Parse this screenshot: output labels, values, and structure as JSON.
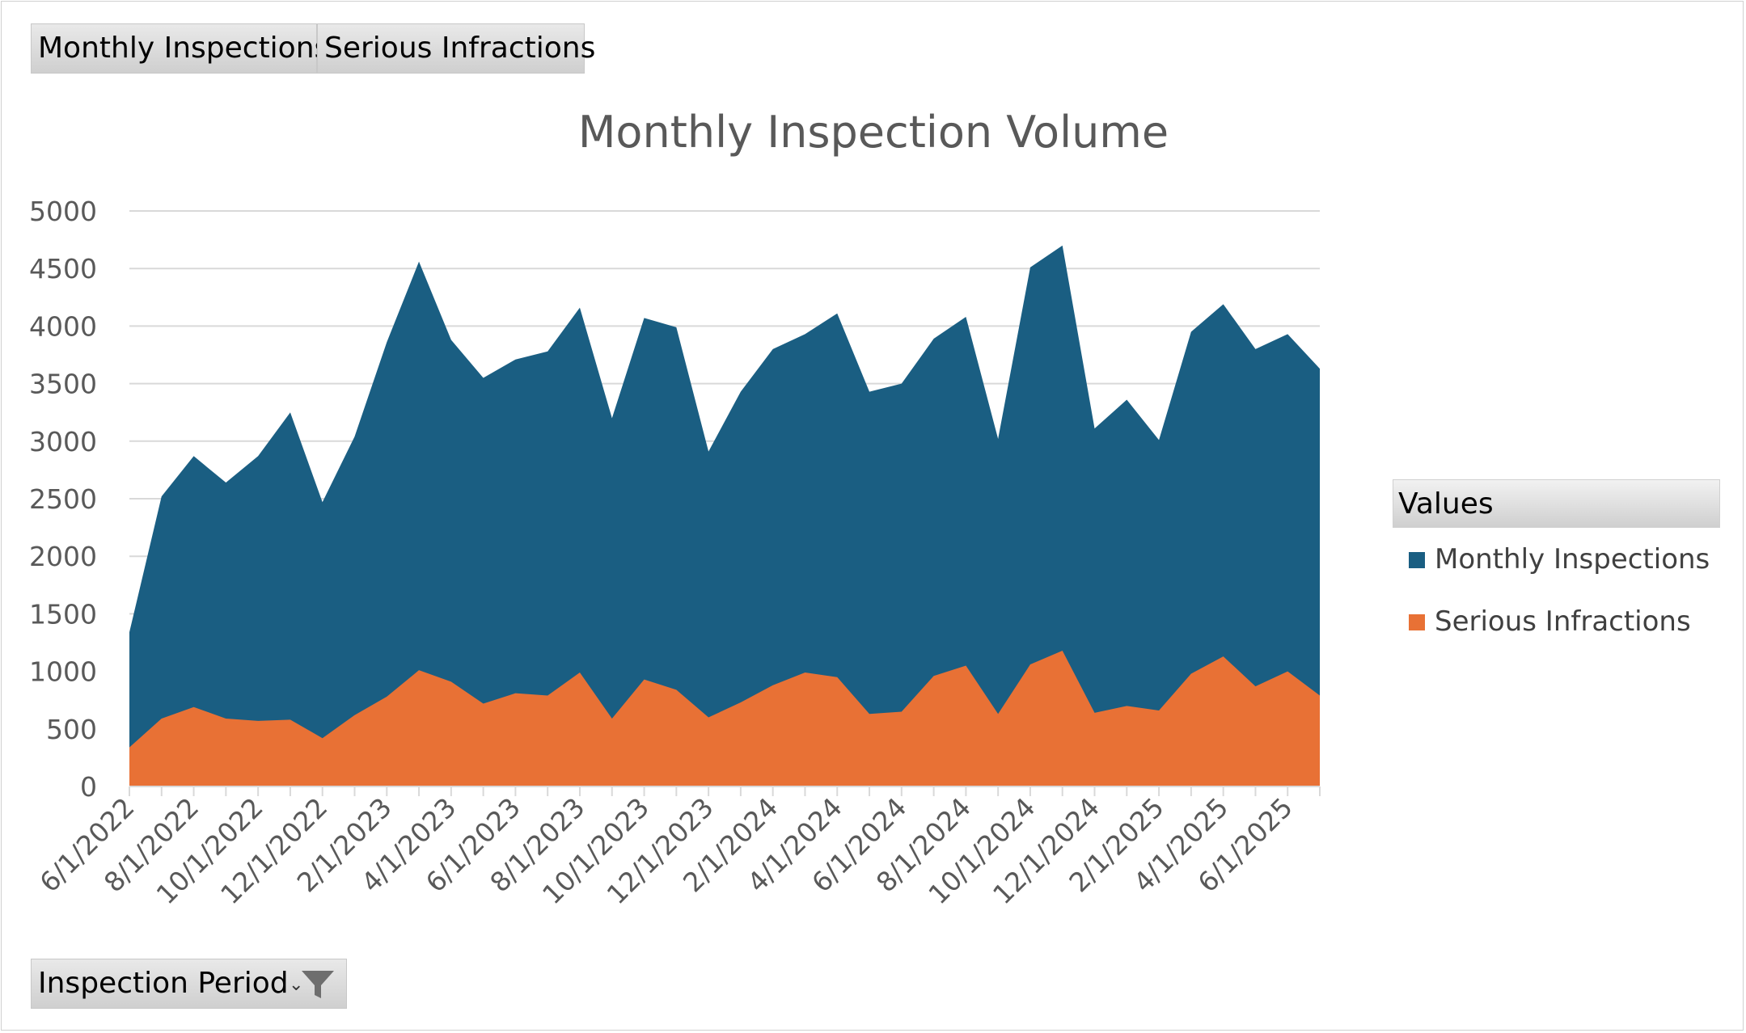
{
  "field_buttons": {
    "series_1": "Monthly Inspections",
    "series_2": "Serious Infractions",
    "filter": "Inspection Period"
  },
  "legend": {
    "title": "Values",
    "items": [
      "Monthly Inspections",
      "Serious Infractions"
    ]
  },
  "colors": {
    "monthly_inspections": "#1a5e82",
    "serious_infractions": "#e87135",
    "gridline": "#d9d9d9",
    "axis_text": "#595959"
  },
  "icons": {
    "filter": "funnel-icon",
    "dropdown": "dropdown-caret-icon"
  },
  "chart_data": {
    "type": "area",
    "title": "Monthly Inspection Volume",
    "xlabel": "",
    "ylabel": "",
    "ylim": [
      0,
      5000
    ],
    "yticks": [
      0,
      500,
      1000,
      1500,
      2000,
      2500,
      3000,
      3500,
      4000,
      4500,
      5000
    ],
    "grid": true,
    "legend_position": "right",
    "overlapping": true,
    "x": [
      "6/1/2022",
      "7/1/2022",
      "8/1/2022",
      "9/1/2022",
      "10/1/2022",
      "11/1/2022",
      "12/1/2022",
      "1/1/2023",
      "2/1/2023",
      "3/1/2023",
      "4/1/2023",
      "5/1/2023",
      "6/1/2023",
      "7/1/2023",
      "8/1/2023",
      "9/1/2023",
      "10/1/2023",
      "11/1/2023",
      "12/1/2023",
      "1/1/2024",
      "2/1/2024",
      "3/1/2024",
      "4/1/2024",
      "5/1/2024",
      "6/1/2024",
      "7/1/2024",
      "8/1/2024",
      "9/1/2024",
      "10/1/2024",
      "11/1/2024",
      "12/1/2024",
      "1/1/2025",
      "2/1/2025",
      "3/1/2025",
      "4/1/2025",
      "5/1/2025",
      "6/1/2025",
      "7/1/2025"
    ],
    "x_tick_labels": [
      "6/1/2022",
      "8/1/2022",
      "10/1/2022",
      "12/1/2022",
      "2/1/2023",
      "4/1/2023",
      "6/1/2023",
      "8/1/2023",
      "10/1/2023",
      "12/1/2023",
      "2/1/2024",
      "4/1/2024",
      "6/1/2024",
      "8/1/2024",
      "10/1/2024",
      "12/1/2024",
      "2/1/2025",
      "4/1/2025",
      "6/1/2025"
    ],
    "series": [
      {
        "name": "Monthly Inspections",
        "values": [
          1340,
          2520,
          2870,
          2640,
          2870,
          3250,
          2470,
          3040,
          3860,
          4560,
          3880,
          3550,
          3710,
          3780,
          4160,
          3200,
          4070,
          3990,
          2910,
          3430,
          3800,
          3930,
          4110,
          3430,
          3500,
          3890,
          4080,
          3020,
          4510,
          4700,
          3110,
          3360,
          3010,
          3950,
          4190,
          3800,
          3930,
          3630
        ]
      },
      {
        "name": "Serious Infractions",
        "values": [
          340,
          590,
          690,
          590,
          570,
          580,
          420,
          620,
          780,
          1010,
          910,
          720,
          810,
          790,
          990,
          590,
          930,
          840,
          600,
          730,
          880,
          990,
          950,
          630,
          650,
          960,
          1050,
          630,
          1060,
          1180,
          640,
          700,
          660,
          980,
          1130,
          870,
          1000,
          790
        ]
      }
    ]
  }
}
